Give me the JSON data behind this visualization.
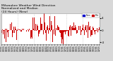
{
  "title": "Milwaukee Weather Wind Direction\nNormalized and Median\n(24 Hours) (New)",
  "background_color": "#d8d8d8",
  "plot_background": "#ffffff",
  "bar_color": "#cc0000",
  "median_color": "#0000bb",
  "ylim": [
    -4.5,
    5.5
  ],
  "ytick_vals": [
    -4,
    0,
    4
  ],
  "ytick_labels": [
    "-4",
    "0",
    "4"
  ],
  "num_bars": 220,
  "seed": 7,
  "legend_norm_color": "#0000cc",
  "legend_med_color": "#cc0000",
  "grid_color": "#bbbbbb",
  "title_fontsize": 3.2,
  "tick_fontsize": 3.0,
  "xtick_fontsize": 2.2
}
